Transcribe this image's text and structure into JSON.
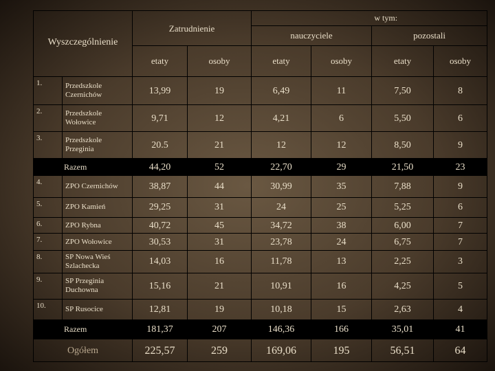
{
  "header": {
    "group_label": "Wyszczególnienie",
    "employment": "Zatrudnienie",
    "of_which": "w tym:",
    "teachers": "nauczyciele",
    "others": "pozostali",
    "columns": [
      "etaty",
      "osoby",
      "etaty",
      "osoby",
      "etaty",
      "osoby"
    ]
  },
  "rows": [
    {
      "no": "1.",
      "name": "Przedszkole Czernichów",
      "values": [
        "13,99",
        "19",
        "6,49",
        "11",
        "7,50",
        "8"
      ]
    },
    {
      "no": "2.",
      "name": "Przedszkole Wołowice",
      "values": [
        "9,71",
        "12",
        "4,21",
        "6",
        "5,50",
        "6"
      ]
    },
    {
      "no": "3.",
      "name": "Przedszkole Przeginia",
      "values": [
        "20.5",
        "21",
        "12",
        "12",
        "8,50",
        "9"
      ]
    },
    {
      "total": "Razem",
      "values": [
        "44,20",
        "52",
        "22,70",
        "29",
        "21,50",
        "23"
      ]
    },
    {
      "no": "4.",
      "name": "ZPO Czernichów",
      "values": [
        "38,87",
        "44",
        "30,99",
        "35",
        "7,88",
        "9"
      ]
    },
    {
      "no": "5.",
      "name": "ZPO Kamień",
      "values": [
        "29,25",
        "31",
        "24",
        "25",
        "5,25",
        "6"
      ]
    },
    {
      "no": "6.",
      "name": "ZPO Rybna",
      "values": [
        "40,72",
        "45",
        "34,72",
        "38",
        "6,00",
        "7"
      ]
    },
    {
      "no": "7.",
      "name": "ZPO Wołowice",
      "values": [
        "30,53",
        "31",
        "23,78",
        "24",
        "6,75",
        "7"
      ]
    },
    {
      "no": "8.",
      "name": "SP Nowa Wieś Szlachecka",
      "values": [
        "14,03",
        "16",
        "11,78",
        "13",
        "2,25",
        "3"
      ]
    },
    {
      "no": "9.",
      "name": "SP Przeginia Duchowna",
      "values": [
        "15,16",
        "21",
        "10,91",
        "16",
        "4,25",
        "5"
      ]
    },
    {
      "no": "10.",
      "name": "SP Rusocice",
      "values": [
        "12,81",
        "19",
        "10,18",
        "15",
        "2,63",
        "4"
      ]
    },
    {
      "total": "Razem",
      "values": [
        "181,37",
        "207",
        "146,36",
        "166",
        "35,01",
        "41"
      ]
    },
    {
      "grand": "Ogółem",
      "values": [
        "225,57",
        "259",
        "169,06",
        "195",
        "56,51",
        "64"
      ]
    }
  ]
}
